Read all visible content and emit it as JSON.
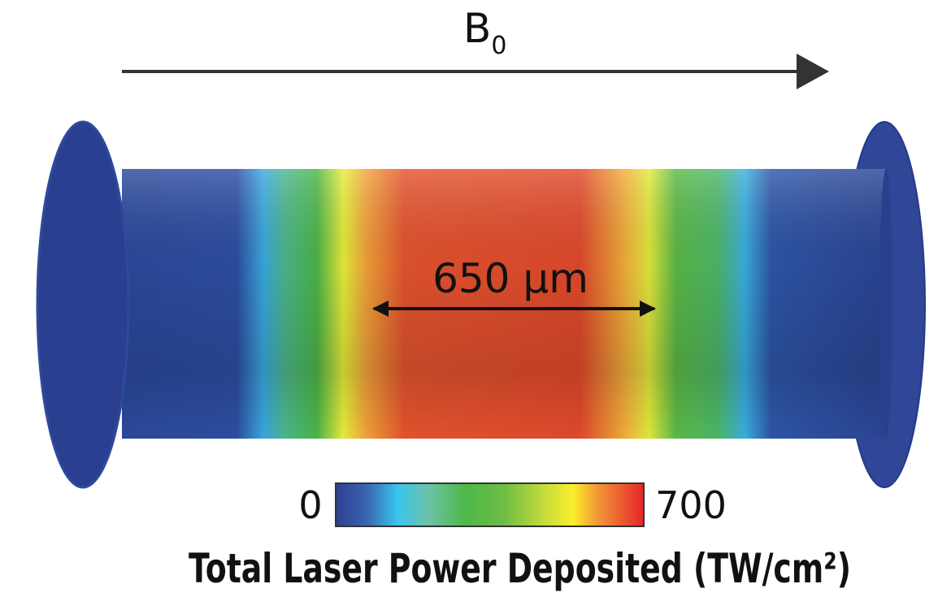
{
  "field_label": {
    "symbol": "B",
    "subscript": "0"
  },
  "dimension_label": "650 µm",
  "colorbar": {
    "min": "0",
    "max": "700",
    "title": "Total Laser Power Deposited (TW/cm²)"
  }
}
